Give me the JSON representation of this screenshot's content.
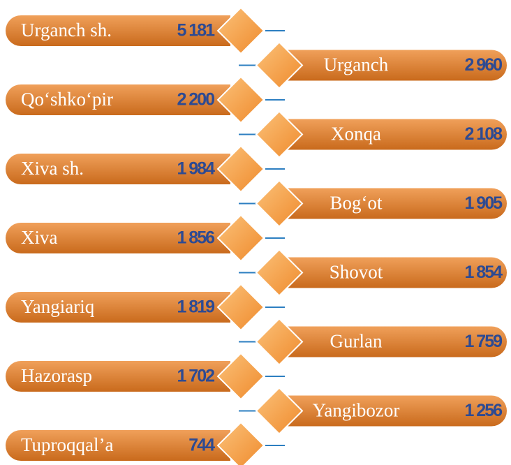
{
  "items": [
    {
      "name": "Urganch sh.",
      "value": "5 181"
    },
    {
      "name": "Urganch",
      "value": "2 960"
    },
    {
      "name": "Qo‘shko‘pir",
      "value": "2 200"
    },
    {
      "name": "Xonqa",
      "value": "2 108"
    },
    {
      "name": "Xiva sh.",
      "value": "1 984"
    },
    {
      "name": "Bog‘ot",
      "value": "1 905"
    },
    {
      "name": "Xiva",
      "value": "1 856"
    },
    {
      "name": "Shovot",
      "value": "1 854"
    },
    {
      "name": "Yangiariq",
      "value": "1 819"
    },
    {
      "name": "Gurlan",
      "value": "1 759"
    },
    {
      "name": "Hazorasp",
      "value": "1 702"
    },
    {
      "name": "Yangibozor",
      "value": "1 256"
    },
    {
      "name": "Tuproqqal’a",
      "value": "744"
    }
  ]
}
